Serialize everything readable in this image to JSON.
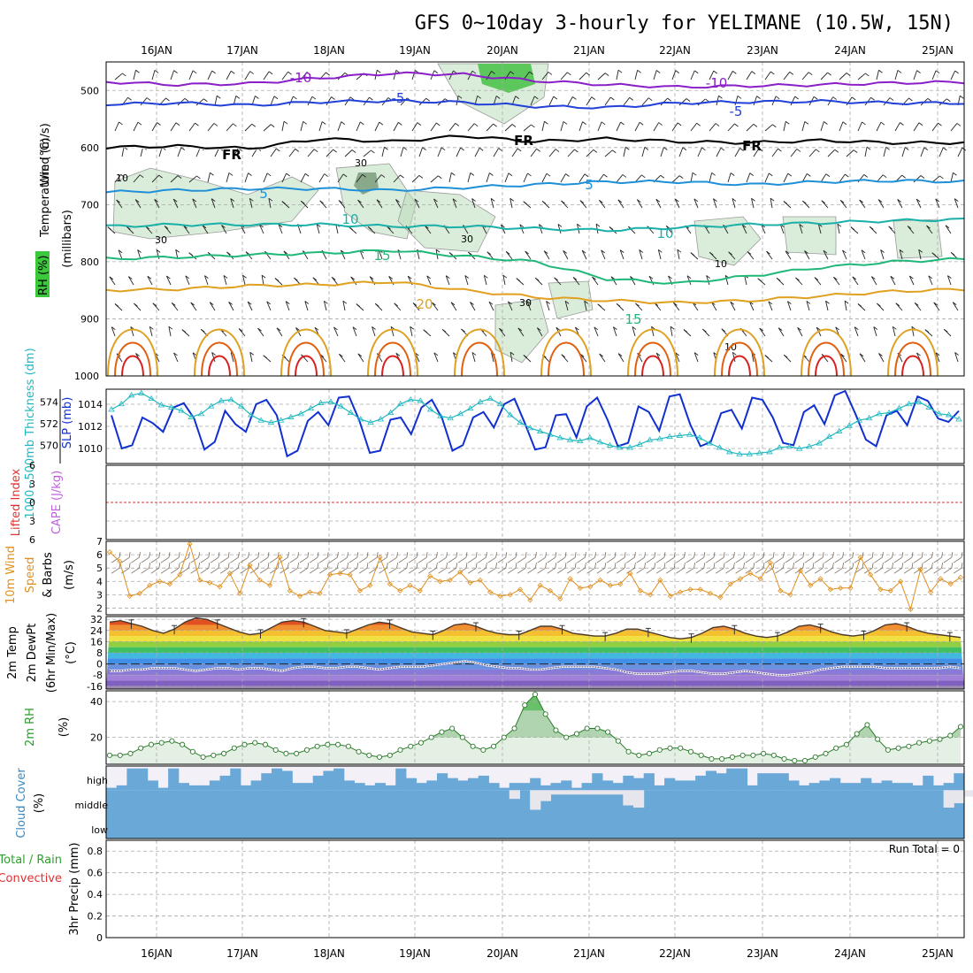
{
  "title": "GFS 0~10day 3-hourly for YELIMANE (10.5W, 15N)",
  "colors": {
    "temp_cold": "#8a1fc8",
    "temp_minus5": "#2040d8",
    "temp_fr": "#000000",
    "temp_plus5": "#1e90d8",
    "temp_10": "#18b0a8",
    "temp_15": "#20b878",
    "temp_20": "#e0a020",
    "temp_25": "#e06010",
    "temp_30": "#d82020",
    "rh_fill": "#bcdcbc",
    "rh_high": "#5cc85c",
    "rh_label": "#2aa02a",
    "slp": "#1030d0",
    "thickness": "#20b8c0",
    "lifted": "#e03030",
    "cape": "#c060e0",
    "wind_speed": "#e09020",
    "dewpoint": "#6a5a8a",
    "cloud": "#6aa8d8",
    "cloud_bg": "#f4f0f8",
    "precip_total": "#2aa02a",
    "precip_conv": "#e03030"
  },
  "chart_data": [
    {
      "panel": "upper-air",
      "type": "contour",
      "x_dates": [
        "16JAN",
        "17JAN",
        "18JAN",
        "19JAN",
        "20JAN",
        "21JAN",
        "22JAN",
        "23JAN",
        "24JAN",
        "25JAN"
      ],
      "y_ticks": [
        500,
        600,
        700,
        800,
        900,
        1000
      ],
      "y_unit": "millibars",
      "ylim": [
        450,
        1000
      ],
      "labels": {
        "wind": "Wind (m/s)",
        "temperature": "Temperature (°C)",
        "rh": "RH (%)",
        "yaxis": "(millibars)"
      },
      "contour_labels": [
        "-10",
        "-5",
        "FR",
        "5",
        "10",
        "15",
        "20"
      ],
      "rh_labels": [
        "10",
        "30"
      ],
      "isotherms": [
        {
          "label": "-10",
          "color_key": "temp_cold",
          "levels": [
            485,
            490,
            488,
            478,
            470,
            472,
            483,
            490,
            494,
            492,
            490,
            487,
            485
          ]
        },
        {
          "label": "-5",
          "color_key": "temp_minus5",
          "levels": [
            524,
            522,
            526,
            520,
            518,
            521,
            528,
            530,
            522,
            520,
            519,
            522,
            522
          ]
        },
        {
          "label": "FR",
          "color_key": "temp_fr",
          "levels": [
            600,
            598,
            602,
            585,
            590,
            580,
            590,
            585,
            590,
            592,
            588,
            592,
            592
          ]
        },
        {
          "label": "5",
          "color_key": "temp_plus5",
          "levels": [
            678,
            675,
            672,
            672,
            675,
            670,
            665,
            660,
            660,
            665,
            660,
            658,
            660
          ]
        },
        {
          "label": "10",
          "color_key": "temp_10",
          "levels": [
            738,
            735,
            735,
            735,
            738,
            738,
            742,
            745,
            740,
            735,
            732,
            728,
            726
          ]
        },
        {
          "label": "15",
          "color_key": "temp_15",
          "levels": [
            795,
            792,
            788,
            785,
            780,
            790,
            800,
            830,
            838,
            825,
            810,
            800,
            795
          ]
        },
        {
          "label": "20",
          "color_key": "temp_20",
          "levels": [
            850,
            848,
            842,
            840,
            835,
            850,
            862,
            868,
            872,
            868,
            860,
            852,
            848
          ]
        }
      ]
    },
    {
      "panel": "thickness-slp",
      "type": "line",
      "labels": {
        "left": "1000~500mb Thickness (dm)",
        "right": "SLP (mb)"
      },
      "thickness_ticks": [
        570,
        572,
        574
      ],
      "slp_ticks": [
        1010,
        1012,
        1014
      ],
      "thickness_ylim": [
        568.5,
        575
      ],
      "slp_ylim": [
        1008.8,
        1015.2
      ],
      "series": [
        {
          "name": "SLP (mb)",
          "values": [
            1013,
            1010,
            1010.3,
            1012.8,
            1012.3,
            1011.5,
            1013.7,
            1014.1,
            1012.7,
            1009.9,
            1010.6,
            1013.4,
            1012.2,
            1011.5,
            1014,
            1014.4,
            1013,
            1009.3,
            1009.8,
            1012.5,
            1013.3,
            1012.1,
            1014.6,
            1014.7,
            1012.5,
            1009.6,
            1009.8,
            1012.6,
            1012.8,
            1011.3,
            1013.7,
            1014.4,
            1012.7,
            1009.8,
            1010.3,
            1012.8,
            1013.3,
            1011.9,
            1014,
            1014.5,
            1012.3,
            1009.9,
            1010.1,
            1013,
            1013.1,
            1011,
            1013.8,
            1014.6,
            1012.6,
            1010.2,
            1010.5,
            1013.8,
            1013.3,
            1011.6,
            1014.7,
            1014.9,
            1012.2,
            1010.2,
            1010.6,
            1013.2,
            1013.5,
            1011.8,
            1014.6,
            1014.4,
            1012.8,
            1010.5,
            1010.3,
            1013.3,
            1013.9,
            1012.2,
            1014.8,
            1015.2,
            1013.1,
            1010.8,
            1010.2,
            1013,
            1013.4,
            1012.1,
            1014.7,
            1014.3,
            1012.7,
            1012.4,
            1013.4
          ]
        },
        {
          "name": "Thickness (dm)",
          "values": [
            573.3,
            573.8,
            574.6,
            574.8,
            574.3,
            573.7,
            573.5,
            573.2,
            572.6,
            572.9,
            573.6,
            574.1,
            574.2,
            573.6,
            572.8,
            572.3,
            572.1,
            572.3,
            572.6,
            572.9,
            573.4,
            573.9,
            574,
            573.6,
            573,
            572.4,
            572.1,
            572.4,
            573,
            573.8,
            574.2,
            574.1,
            573.3,
            572.7,
            572.5,
            572.9,
            573.4,
            574,
            574.3,
            573.8,
            572.8,
            572.1,
            571.6,
            571.3,
            571,
            570.7,
            570.5,
            570.4,
            570.7,
            570.3,
            570,
            569.8,
            569.8,
            570.1,
            570.5,
            570.6,
            570.8,
            570.9,
            571,
            570.7,
            570.2,
            569.8,
            569.4,
            569.2,
            569.2,
            569.3,
            569.4,
            569.8,
            569.9,
            569.7,
            569.9,
            570.2,
            570.8,
            571.3,
            571.8,
            572.3,
            572.5,
            572.9,
            573,
            573.4,
            573.8,
            574,
            573.5,
            572.9,
            572.8,
            572.4
          ]
        }
      ]
    },
    {
      "panel": "stability",
      "type": "line",
      "labels": {
        "lifted": "Lifted Index",
        "cape": "CAPE (J/kg)"
      },
      "y_ticks": [
        "6",
        "3",
        "0",
        "3",
        "6"
      ],
      "ylim": [
        -6,
        6
      ],
      "series": [
        {
          "name": "Lifted Index",
          "values": []
        },
        {
          "name": "CAPE (J/kg)",
          "values": []
        }
      ]
    },
    {
      "panel": "wind10m",
      "type": "line",
      "labels": {
        "title": "10m Wind",
        "speed": "Speed",
        "barbs": "& Barbs",
        "unit": "(m/s)"
      },
      "y_ticks": [
        2,
        3,
        4,
        5,
        6,
        7
      ],
      "ylim": [
        1.5,
        7
      ],
      "series": [
        {
          "name": "Speed (m/s)",
          "values": [
            6.2,
            5.5,
            2.9,
            3.1,
            3.7,
            4,
            3.8,
            4.5,
            6.8,
            4.1,
            3.9,
            3.6,
            4.6,
            3.1,
            5.2,
            4.1,
            3.7,
            5.8,
            3.3,
            2.9,
            3.2,
            3.1,
            4.5,
            4.6,
            4.5,
            3.3,
            3.7,
            5.8,
            3.8,
            3.3,
            3.7,
            3.3,
            4.4,
            4,
            4.1,
            4.7,
            3.9,
            4.1,
            3.2,
            2.9,
            3,
            3.4,
            2.6,
            3.7,
            3.3,
            2.7,
            4.2,
            3.5,
            3.6,
            4.1,
            3.7,
            3.8,
            4.6,
            3.3,
            3,
            4.1,
            2.9,
            3.2,
            3.4,
            3.4,
            3.1,
            2.8,
            3.8,
            4.2,
            4.6,
            4.2,
            5.4,
            3.3,
            3,
            4.8,
            3.7,
            4.2,
            3.4,
            3.5,
            3.5,
            5.8,
            4.5,
            3.4,
            3.3,
            4,
            1.9,
            4.9,
            3.2,
            4.2,
            3.8,
            4.3
          ]
        }
      ]
    },
    {
      "panel": "temperature",
      "type": "area",
      "labels": {
        "a": "2m Temp",
        "b": "2m DewPt",
        "c": "(6hr Min/Max)",
        "unit": "(°C)"
      },
      "y_ticks": [
        32,
        24,
        16,
        8,
        0,
        -8,
        -16
      ],
      "ylim": [
        -18,
        34
      ],
      "series": [
        {
          "name": "2m Temp",
          "values": [
            30,
            31,
            29,
            27,
            24,
            22,
            25,
            30,
            33,
            32,
            29,
            26,
            23,
            21,
            22,
            26,
            30,
            31,
            30,
            27,
            24,
            23,
            22,
            25,
            28,
            30,
            29,
            26,
            23,
            22,
            21,
            24,
            28,
            29,
            27,
            24,
            22,
            21,
            21,
            24,
            27,
            27,
            25,
            22,
            21,
            20,
            20,
            22,
            25,
            25,
            23,
            21,
            19,
            18,
            19,
            22,
            26,
            27,
            25,
            22,
            20,
            19,
            20,
            23,
            27,
            28,
            26,
            23,
            21,
            20,
            21,
            24,
            28,
            29,
            27,
            24,
            22,
            21,
            20,
            19
          ]
        },
        {
          "name": "2m DewPt",
          "values": [
            -5,
            -5,
            -4,
            -4,
            -3,
            -3,
            -3,
            -4,
            -5,
            -4,
            -3,
            -3,
            -4,
            -3,
            -3,
            -4,
            -5,
            -3,
            -2,
            -2,
            -3,
            -3,
            -2,
            -2,
            -3,
            -4,
            -3,
            -2,
            -2,
            -2,
            -1,
            0,
            1,
            2,
            1,
            -1,
            -2,
            -3,
            -3,
            -4,
            -4,
            -3,
            -2,
            -2,
            -2,
            -2,
            -3,
            -4,
            -6,
            -7,
            -7,
            -7,
            -6,
            -5,
            -5,
            -6,
            -7,
            -7,
            -6,
            -5,
            -6,
            -7,
            -8,
            -8,
            -7,
            -6,
            -4,
            -3,
            -2,
            -2,
            -2,
            -2,
            -3,
            -3,
            -3,
            -3,
            -3,
            -3,
            -2,
            -3
          ]
        }
      ]
    },
    {
      "panel": "rh2m",
      "type": "line",
      "labels": {
        "title": "2m RH",
        "unit": "(%)"
      },
      "y_ticks": [
        20,
        40
      ],
      "ylim": [
        5,
        46
      ],
      "series": [
        {
          "name": "2m RH (%)",
          "values": [
            10,
            10,
            11,
            14,
            16,
            17,
            18,
            16,
            12,
            9,
            10,
            11,
            14,
            16,
            17,
            16,
            13,
            11,
            11,
            13,
            15,
            16,
            16,
            15,
            12,
            10,
            9,
            10,
            13,
            15,
            17,
            20,
            23,
            25,
            20,
            15,
            13,
            15,
            20,
            25,
            38,
            44,
            33,
            24,
            20,
            22,
            25,
            25,
            23,
            18,
            12,
            10,
            11,
            13,
            14,
            14,
            12,
            10,
            8,
            8,
            9,
            10,
            10,
            11,
            10,
            8,
            7,
            7,
            9,
            11,
            14,
            16,
            22,
            27,
            19,
            13,
            14,
            15,
            17,
            18,
            19,
            21,
            26
          ]
        }
      ]
    },
    {
      "panel": "cloud",
      "type": "heatmap",
      "labels": {
        "title": "Cloud Cover",
        "unit": "(%)",
        "high": "high",
        "middle": "middle",
        "low": "low"
      },
      "high_cover": [
        0.1,
        0.2,
        0.9,
        0.9,
        0.4,
        0.1,
        0.9,
        0.3,
        0.2,
        0.2,
        0.4,
        0.6,
        0.9,
        0.2,
        0.4,
        0.7,
        0.9,
        0.8,
        0.3,
        0.3,
        0.6,
        0.8,
        0.9,
        0.4,
        0.3,
        0.2,
        0.3,
        0.2,
        0.9,
        0.5,
        0.3,
        0.4,
        0.7,
        0.5,
        0.4,
        0.5,
        0.6,
        0.3,
        0.1,
        0.3,
        0.3,
        0.5,
        0.2,
        0.3,
        0.4,
        0.1,
        0.3,
        0.7,
        0.4,
        0.3,
        0.6,
        0.5,
        0.7,
        0.2,
        0.5,
        0.4,
        0.4,
        0.6,
        0.8,
        0.7,
        0.9,
        0.9,
        0.2,
        0.7,
        0.7,
        0.7,
        0.4,
        0.2,
        0.3,
        0.4,
        0.5,
        0.3,
        0.3,
        0.5,
        0.3,
        0.4,
        0.3,
        0.3,
        0.2,
        0.6,
        0.2,
        0.3,
        0.7
      ],
      "middle_cover": [
        0,
        0,
        0,
        0,
        0,
        0,
        0,
        0,
        0,
        0,
        0,
        0,
        0,
        0,
        0,
        0,
        0,
        0,
        0,
        0,
        0,
        0,
        0,
        0,
        0,
        0,
        0,
        0,
        0,
        0,
        0,
        0,
        0,
        0,
        0,
        0,
        0,
        0,
        0,
        0.4,
        0,
        0.9,
        0.5,
        0.2,
        0.2,
        0.2,
        0.2,
        0.2,
        0.2,
        0.2,
        0.7,
        0.8,
        0,
        0,
        0,
        0,
        0,
        0,
        0,
        0,
        0,
        0,
        0,
        0,
        0,
        0,
        0,
        0,
        0,
        0,
        0,
        0,
        0,
        0,
        0,
        0,
        0,
        0,
        0,
        0,
        0,
        0.8,
        0.6,
        0.3
      ]
    },
    {
      "panel": "precip",
      "type": "bar",
      "labels": {
        "left_a": "Total / Rain",
        "left_b": "Convective",
        "ylabel": "3hr Precip (mm)",
        "run_total": "Run Total = 0"
      },
      "y_ticks": [
        "0",
        "0.2",
        "0.4",
        "0.6",
        "0.8"
      ],
      "ylim": [
        0,
        0.9
      ],
      "series": [
        {
          "name": "Total / Rain",
          "values": []
        },
        {
          "name": "Convective",
          "values": []
        }
      ]
    }
  ]
}
